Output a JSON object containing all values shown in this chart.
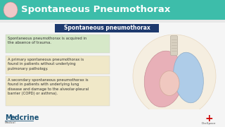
{
  "bg_color": "#f0f0f0",
  "header_color": "#3dbdaa",
  "header_text": "Spontaneous Pneumothorax",
  "header_text_color": "#ffffff",
  "header_font_size": 9.5,
  "subtitle_box_color": "#1e3a6e",
  "subtitle_text": "Spontaneous pneumothorax",
  "subtitle_text_color": "#ffffff",
  "subtitle_font_size": 5.5,
  "text_blocks": [
    {
      "text": "Spontaneous pneumothorax is acquired in\nthe absence of trauma.",
      "bg": "#d6e8c8"
    },
    {
      "text": "A primary spontaneous pneumothorax is\nfound in patients without underlying\npulmonary pathology.",
      "bg": "#f0e8c8"
    },
    {
      "text": "A secondary spontaneous pneumothorax is\nfound in patients with underlying lung\ndisease and damage to the alveolar-pleural\nbarrier (COPD) or asthma).",
      "bg": "#f0e8c8"
    }
  ],
  "text_font_size": 3.8,
  "text_color": "#333333",
  "footer_logo_text": "Medcrine",
  "footer_logo_sub": "Medical",
  "footer_logo_color": "#1a5276",
  "footer_right_color": "#cc0000",
  "footer_right_text": "DocSpace"
}
